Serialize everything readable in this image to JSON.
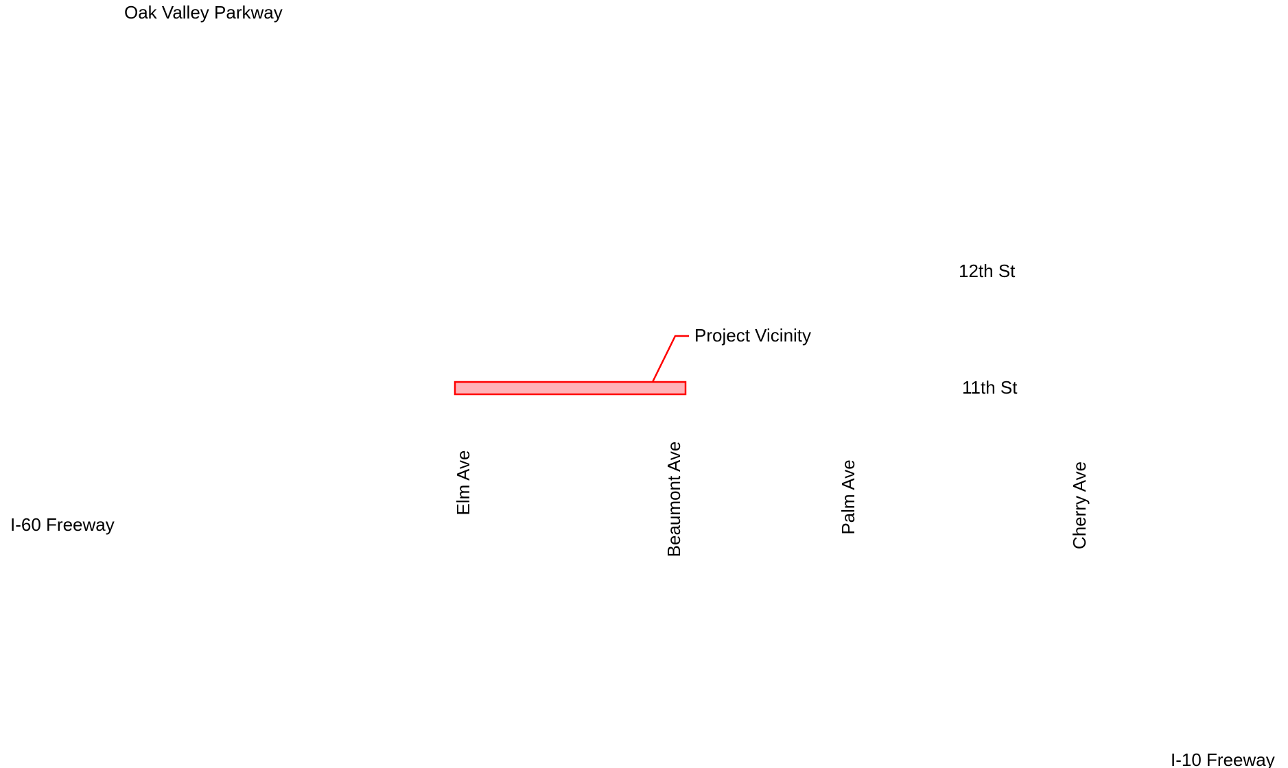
{
  "map": {
    "roads": {
      "oak_valley": "Oak Valley Parkway",
      "i60": "I-60 Freeway",
      "i10": "I-10 Freeway",
      "twelfth": "12th St",
      "eleventh": "11th St",
      "elm": "Elm Ave",
      "beaumont": "Beaumont Ave",
      "palm": "Palm Ave",
      "cherry": "Cherry Ave"
    },
    "project": {
      "label": "Project Vicinity",
      "fill_color": "#ffb3b8",
      "stroke_color": "#ff0000"
    }
  }
}
